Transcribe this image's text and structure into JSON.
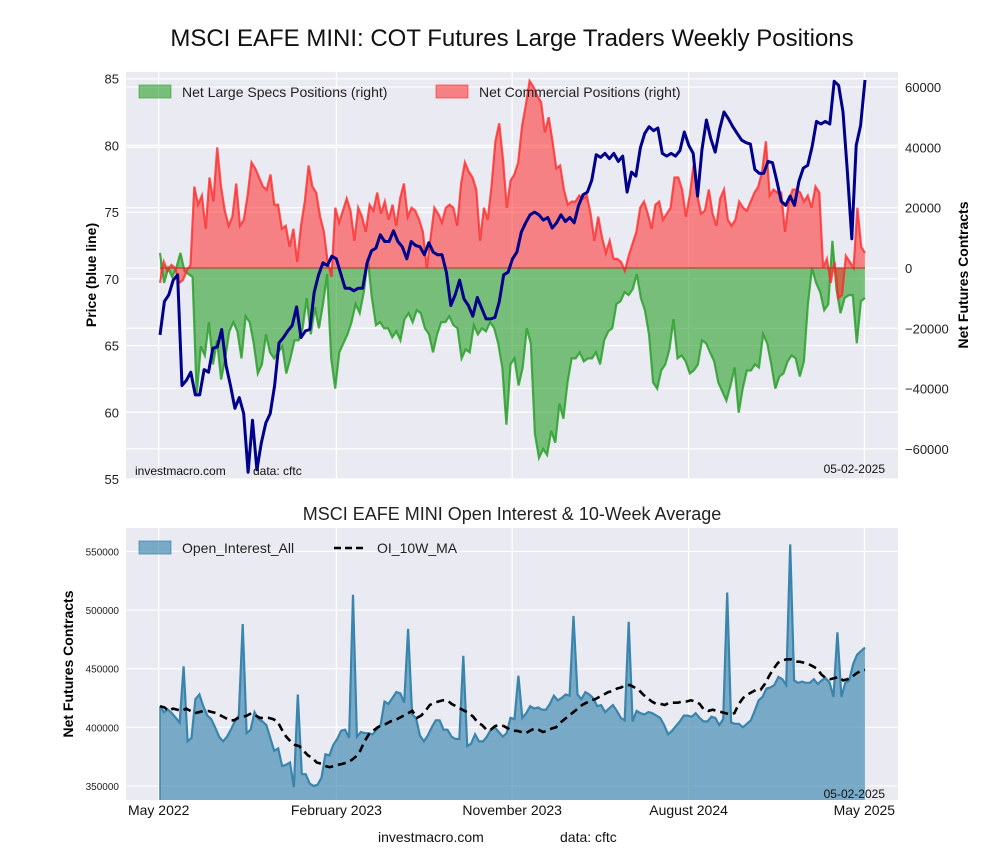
{
  "title": "MSCI EAFE MINI: COT Futures Large Traders Weekly Positions",
  "chart_data": [
    {
      "type": "line",
      "name": "positions-chart",
      "ylabel_left": "Price (blue line)",
      "ylabel_right": "Net Futures Contracts",
      "ylim_left": [
        55,
        85.5
      ],
      "ylim_right": [
        -70000,
        65000
      ],
      "yticks_left": [
        55,
        60,
        65,
        70,
        75,
        80,
        85
      ],
      "yticks_right": [
        -60000,
        -40000,
        -20000,
        0,
        20000,
        40000,
        60000
      ],
      "grid": true,
      "legend_position": "top-left",
      "legend": [
        "Net Large Specs Positions (right)",
        "Net Commercial Positions (right)"
      ],
      "annotations": {
        "source": "investmacro.com",
        "data": "data: cftc",
        "date": "05-02-2025"
      },
      "x_start": "2022-05-03",
      "x_end": "2025-05-02",
      "series": [
        {
          "name": "Price",
          "axis": "left",
          "color": "#00008b",
          "values": [
            65.8,
            68.3,
            68.8,
            69.9,
            70.3,
            62.0,
            62.4,
            63.0,
            61.3,
            61.3,
            63.2,
            63.0,
            64.8,
            64.9,
            66.2,
            63.5,
            62.0,
            60.3,
            61.1,
            59.9,
            55.5,
            59.4,
            55.7,
            57.7,
            59.2,
            59.9,
            62.0,
            65.2,
            65.6,
            66.1,
            66.5,
            67.9,
            65.6,
            66.1,
            66.2,
            69.0,
            70.3,
            71.2,
            71.0,
            71.7,
            71.5,
            70.4,
            69.3,
            69.3,
            69.1,
            69.3,
            69.3,
            71.2,
            72.1,
            72.3,
            73.3,
            72.8,
            72.8,
            73.6,
            72.8,
            72.4,
            71.5,
            72.8,
            72.5,
            72.4,
            71.8,
            72.7,
            72.0,
            71.8,
            71.8,
            70.5,
            68.0,
            68.8,
            69.9,
            68.5,
            68.0,
            67.2,
            68.6,
            67.8,
            67.0,
            67.0,
            67.1,
            68.3,
            70.3,
            70.5,
            71.5,
            72.0,
            73.5,
            74.2,
            74.8,
            75.0,
            74.8,
            74.4,
            74.6,
            73.8,
            74.2,
            74.8,
            74.3,
            74.6,
            74.2,
            75.5,
            76.3,
            76.5,
            77.4,
            79.3,
            79.1,
            79.4,
            79.0,
            79.4,
            78.8,
            79.2,
            76.5,
            78.0,
            77.7,
            79.8,
            80.9,
            81.4,
            81.1,
            81.3,
            79.4,
            79.2,
            79.4,
            79.2,
            79.6,
            81.0,
            80.0,
            79.4,
            76.2,
            79.7,
            81.9,
            80.5,
            79.5,
            81.2,
            82.5,
            82.0,
            81.4,
            80.9,
            80.4,
            80.2,
            80.1,
            78.2,
            77.9,
            77.9,
            78.8,
            78.7,
            77.3,
            75.8,
            75.5,
            76.2,
            75.5,
            77.3,
            78.3,
            78.5,
            79.9,
            81.8,
            81.6,
            81.8,
            81.6,
            84.8,
            84.5,
            82.5,
            78.0,
            73.0,
            80.0,
            81.5,
            84.9
          ]
        },
        {
          "name": "Net Large Specs Positions (right)",
          "axis": "right",
          "color": "#2ca02c",
          "values": [
            5000,
            -5000,
            0,
            -3000,
            0,
            5000,
            -1000,
            -2000,
            -3000,
            -42000,
            -26000,
            -29000,
            -18000,
            -32000,
            -24000,
            -37000,
            -30000,
            -21000,
            -18000,
            -21000,
            -30000,
            -16000,
            -18000,
            -25000,
            -35000,
            -32000,
            -22000,
            -28000,
            -30000,
            -28000,
            -26000,
            -35000,
            -30000,
            -24000,
            -24000,
            -20000,
            -10000,
            -22000,
            -13000,
            -20000,
            -12000,
            -2000,
            -30000,
            -40000,
            -28000,
            -25000,
            -22000,
            -18000,
            -12000,
            -15000,
            -8000,
            3000,
            -10000,
            -19000,
            -18000,
            -20000,
            -20000,
            -23000,
            -21000,
            -24000,
            -17000,
            -15000,
            -18000,
            -14000,
            -15000,
            -20000,
            -22000,
            -28000,
            -22000,
            -18000,
            -18000,
            -16000,
            -19000,
            -20000,
            -30000,
            -27000,
            -28000,
            -19000,
            -22000,
            -20000,
            -21000,
            -18000,
            -20000,
            -25000,
            -33000,
            -52000,
            -32000,
            -30000,
            -39000,
            -33000,
            -20000,
            -25000,
            -55000,
            -63000,
            -60000,
            -62000,
            -54000,
            -58000,
            -45000,
            -50000,
            -38000,
            -30000,
            -30000,
            -28000,
            -31000,
            -30000,
            -30000,
            -28000,
            -32000,
            -24000,
            -21000,
            -20000,
            -12000,
            -11000,
            -8000,
            -9000,
            -7000,
            -2000,
            -10000,
            -14000,
            -22000,
            -38000,
            -40000,
            -34000,
            -32000,
            -27000,
            -17000,
            -30000,
            -29000,
            -31000,
            -35000,
            -34000,
            -32000,
            -24000,
            -25000,
            -28000,
            -31000,
            -38000,
            -41000,
            -44000,
            -39000,
            -33000,
            -48000,
            -40000,
            -34000,
            -34000,
            -32000,
            -33000,
            -22000,
            -25000,
            -32000,
            -40000,
            -36000,
            -35000,
            -31000,
            -29000,
            -30000,
            -36000,
            -31000,
            -12000,
            0,
            -5000,
            -8000,
            -14000,
            -12000,
            9000,
            -7000,
            -15000,
            -10000,
            -9000,
            -9000,
            -25000,
            -11000,
            -10000
          ]
        },
        {
          "name": "Net Commercial Positions (right)",
          "axis": "right",
          "color": "#ff2a2a",
          "values": [
            -5000,
            2000,
            -1000,
            1000,
            0,
            -5000,
            -4000,
            -1000,
            1000,
            27000,
            21000,
            24000,
            13000,
            30000,
            22000,
            40000,
            27000,
            19000,
            14000,
            17000,
            28000,
            14000,
            16000,
            24000,
            35000,
            33000,
            30000,
            27000,
            26000,
            31000,
            21000,
            21000,
            13000,
            14000,
            7000,
            13000,
            2000,
            14000,
            22000,
            34000,
            27000,
            25000,
            17000,
            12000,
            2000,
            -3000,
            20000,
            15000,
            19000,
            23000,
            19000,
            9000,
            20000,
            17000,
            12000,
            21000,
            19000,
            25000,
            18000,
            22000,
            16000,
            21000,
            14000,
            23000,
            28000,
            17000,
            20000,
            19000,
            16000,
            12000,
            0,
            10000,
            20000,
            18000,
            15000,
            20000,
            21000,
            20000,
            14000,
            28000,
            35000,
            32000,
            30000,
            26000,
            9000,
            20000,
            16000,
            27000,
            42000,
            48000,
            36000,
            20000,
            29000,
            31000,
            35000,
            47000,
            54000,
            62000,
            60000,
            57000,
            55000,
            45000,
            50000,
            42000,
            33000,
            34000,
            26000,
            21000,
            22000,
            22000,
            24000,
            23000,
            24000,
            18000,
            9000,
            17000,
            10000,
            5000,
            9000,
            3000,
            3000,
            2000,
            -1000,
            4000,
            8000,
            12000,
            20000,
            22000,
            18000,
            13000,
            21000,
            22000,
            16000,
            18000,
            20000,
            30000,
            30000,
            26000,
            17000,
            24000,
            34000,
            24000,
            18000,
            19000,
            26000,
            18000,
            14000,
            23000,
            26000,
            16000,
            14000,
            16000,
            22000,
            20000,
            19000,
            22000,
            25000,
            27000,
            32000,
            42000,
            24000,
            26000,
            25000,
            25000,
            12000,
            22000,
            26000,
            26000,
            25000,
            22000,
            24000,
            20000,
            27000,
            25000,
            0,
            3000,
            -5000,
            2000,
            -10000,
            -9000,
            4000,
            2000,
            0,
            20000,
            7000,
            5000
          ]
        }
      ]
    },
    {
      "type": "area",
      "name": "open-interest-chart",
      "title": "MSCI EAFE MINI Open Interest & 10-Week Average",
      "ylabel": "Net Futures Contracts",
      "ylim": [
        338000,
        570000
      ],
      "yticks": [
        350000,
        400000,
        450000,
        500000,
        550000
      ],
      "grid": true,
      "legend_position": "top-left",
      "legend": [
        "Open_Interest_All",
        "OI_10W_MA"
      ],
      "annotations": {
        "date": "05-02-2025"
      },
      "xticks": [
        "May 2022",
        "February 2023",
        "November 2023",
        "August 2024",
        "May 2025"
      ],
      "series": [
        {
          "name": "Open_Interest_All",
          "color": "#3a85ad",
          "values": [
            418000,
            413000,
            415000,
            412000,
            408000,
            404000,
            452000,
            388000,
            391000,
            424000,
            428000,
            418000,
            410000,
            407000,
            400000,
            392000,
            388000,
            392000,
            398000,
            405000,
            410000,
            488000,
            395000,
            398000,
            413000,
            407000,
            405000,
            402000,
            391000,
            380000,
            382000,
            367000,
            368000,
            370000,
            349000,
            428000,
            360000,
            360000,
            352000,
            350000,
            351000,
            357000,
            377000,
            376000,
            385000,
            390000,
            397000,
            398000,
            391000,
            513000,
            392000,
            396000,
            395000,
            395000,
            394000,
            398000,
            402000,
            422000,
            420000,
            425000,
            430000,
            429000,
            421000,
            484000,
            411000,
            408000,
            393000,
            388000,
            393000,
            400000,
            406000,
            406000,
            398000,
            398000,
            392000,
            390000,
            390000,
            461000,
            384000,
            386000,
            394000,
            388000,
            388000,
            392000,
            398000,
            400000,
            396000,
            392000,
            395000,
            408000,
            407000,
            444000,
            408000,
            412000,
            418000,
            416000,
            417000,
            415000,
            415000,
            420000,
            427000,
            423000,
            425000,
            428000,
            427000,
            495000,
            428000,
            424000,
            430000,
            428000,
            425000,
            418000,
            419000,
            413000,
            416000,
            419000,
            414000,
            408000,
            406000,
            490000,
            405000,
            414000,
            412000,
            411000,
            413000,
            412000,
            410000,
            408000,
            402000,
            394000,
            397000,
            401000,
            405000,
            410000,
            410000,
            409000,
            412000,
            408000,
            405000,
            405000,
            409000,
            408000,
            402000,
            407000,
            515000,
            404000,
            403000,
            403000,
            400000,
            403000,
            406000,
            414000,
            423000,
            426000,
            433000,
            434000,
            436000,
            443000,
            441000,
            436000,
            556000,
            440000,
            438000,
            439000,
            438000,
            438000,
            441000,
            437000,
            440000,
            442000,
            438000,
            426000,
            481000,
            426000,
            438000,
            440000,
            454000,
            462000,
            465000,
            468000
          ]
        },
        {
          "name": "OI_10W_MA",
          "color": "#000000",
          "style": "dashed",
          "values": [
            418000,
            417000,
            414000,
            416000,
            415000,
            414000,
            416000,
            414000,
            412000,
            413000,
            414000,
            414000,
            413000,
            412000,
            410000,
            408000,
            406000,
            406000,
            408000,
            409000,
            410000,
            412000,
            410000,
            408000,
            408000,
            408000,
            407000,
            405000,
            398000,
            392000,
            388000,
            385000,
            384000,
            380000,
            376000,
            374000,
            370000,
            369000,
            367000,
            366000,
            367000,
            368000,
            369000,
            370000,
            372000,
            375000,
            380000,
            388000,
            394000,
            397000,
            400000,
            402000,
            403000,
            405000,
            406000,
            408000,
            410000,
            412000,
            414000,
            408000,
            410000,
            414000,
            419000,
            421000,
            422000,
            423000,
            423000,
            420000,
            418000,
            416000,
            414000,
            412000,
            409000,
            404000,
            402000,
            398000,
            398000,
            401000,
            402000,
            401000,
            399000,
            397000,
            397000,
            396000,
            395000,
            397000,
            399000,
            398000,
            396000,
            397000,
            399000,
            400000,
            404000,
            407000,
            410000,
            413000,
            416000,
            419000,
            421000,
            423000,
            424000,
            426000,
            428000,
            430000,
            431000,
            433000,
            434000,
            436000,
            436000,
            434000,
            432000,
            428000,
            425000,
            422000,
            420000,
            420000,
            419000,
            421000,
            421000,
            421000,
            422000,
            422000,
            423000,
            422000,
            420000,
            415000,
            414000,
            415000,
            414000,
            413000,
            412000,
            411000,
            412000,
            420000,
            425000,
            428000,
            430000,
            432000,
            432000,
            437000,
            444000,
            450000,
            455000,
            457000,
            458000,
            458000,
            456000,
            456000,
            455000,
            454000,
            452000,
            450000,
            445000,
            442000,
            441000,
            442000,
            443000,
            440000,
            441000,
            443000,
            446000,
            448000,
            449000
          ]
        }
      ]
    }
  ],
  "footer": {
    "source": "investmacro.com",
    "data": "data: cftc"
  }
}
